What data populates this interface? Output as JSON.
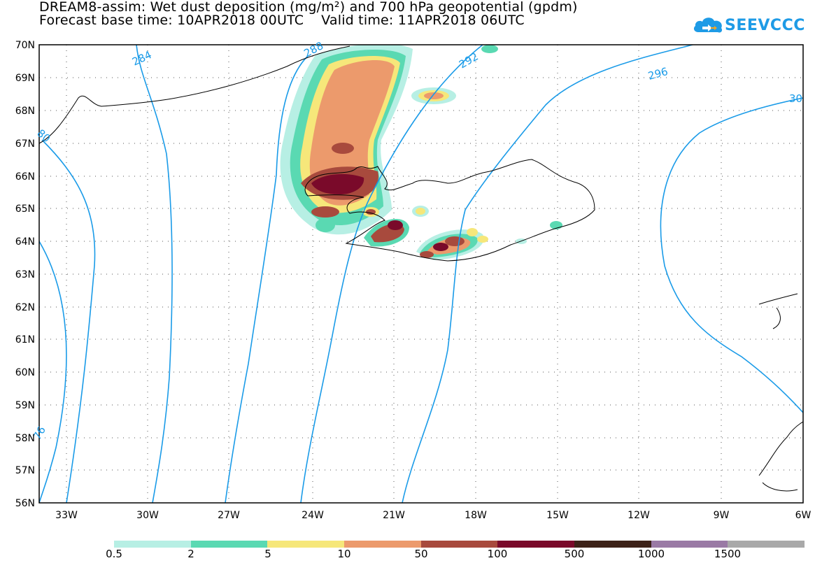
{
  "title": {
    "line1": "DREAM8-assim: Wet dust deposition (mg/m²) and 700 hPa geopotential (gpdm)",
    "line2": "Forecast base time: 10APR2018 00UTC    Valid time: 11APR2018 06UTC"
  },
  "logo": {
    "text": "SEEVCCC",
    "icon": "cloud-icon",
    "color": "#1e9be6"
  },
  "axes": {
    "lat_labels": [
      "70N",
      "69N",
      "68N",
      "67N",
      "66N",
      "65N",
      "64N",
      "63N",
      "62N",
      "61N",
      "60N",
      "59N",
      "58N",
      "57N",
      "56N"
    ],
    "lon_labels": [
      "33W",
      "30W",
      "27W",
      "24W",
      "21W",
      "18W",
      "15W",
      "12W",
      "9W",
      "6W"
    ]
  },
  "contours": {
    "color": "#1a9be8",
    "labels": [
      "284",
      "288",
      "292",
      "296",
      "30",
      "80",
      "76"
    ]
  },
  "legend": {
    "colors": [
      "#b7efe4",
      "#5ad9b2",
      "#f6e77a",
      "#ec9a6c",
      "#a84a3d",
      "#7a0a2a",
      "#3d2218",
      "#9a7aa5",
      "#a9a9a9"
    ],
    "labels": [
      "0.5",
      "2",
      "5",
      "10",
      "50",
      "100",
      "500",
      "1000",
      "1500"
    ]
  }
}
